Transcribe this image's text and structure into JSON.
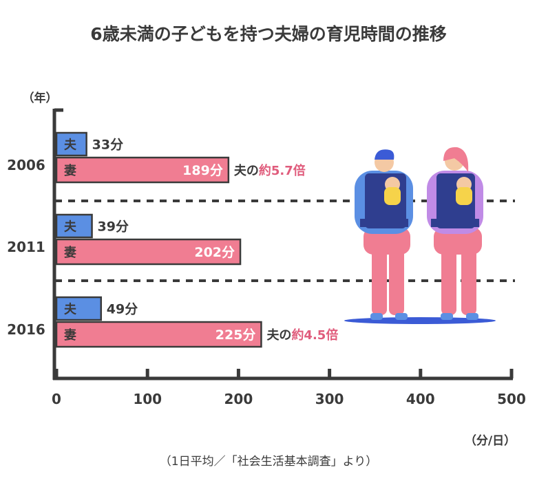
{
  "title": "6歳未満の子どもを持つ夫婦の育児時間の推移",
  "source": "（1日平均／「社会生活基本調査」より）",
  "colors": {
    "husband": "#5b8fe3",
    "wife": "#f07d92",
    "axis": "#3a3a3a",
    "accent": "#e05c7c"
  },
  "chart_data": {
    "type": "bar",
    "orientation": "horizontal",
    "ylabel": "（年）",
    "xlabel": "（分/日）",
    "categories": [
      "2006",
      "2011",
      "2016"
    ],
    "series": [
      {
        "name": "夫",
        "values": [
          33,
          39,
          49
        ],
        "labels": [
          "33分",
          "39分",
          "49分"
        ]
      },
      {
        "name": "妻",
        "values": [
          189,
          202,
          225
        ],
        "labels": [
          "189分",
          "202分",
          "225分"
        ]
      }
    ],
    "xlim": [
      0,
      500
    ],
    "xticks": [
      "0",
      "100",
      "200",
      "300",
      "400",
      "500"
    ],
    "annotations": [
      {
        "prefix": "夫の",
        "emph": "約5.7倍"
      },
      {
        "prefix": "",
        "emph": ""
      },
      {
        "prefix": "夫の",
        "emph": "約4.5倍"
      }
    ],
    "grid": false,
    "legend": "inline"
  }
}
